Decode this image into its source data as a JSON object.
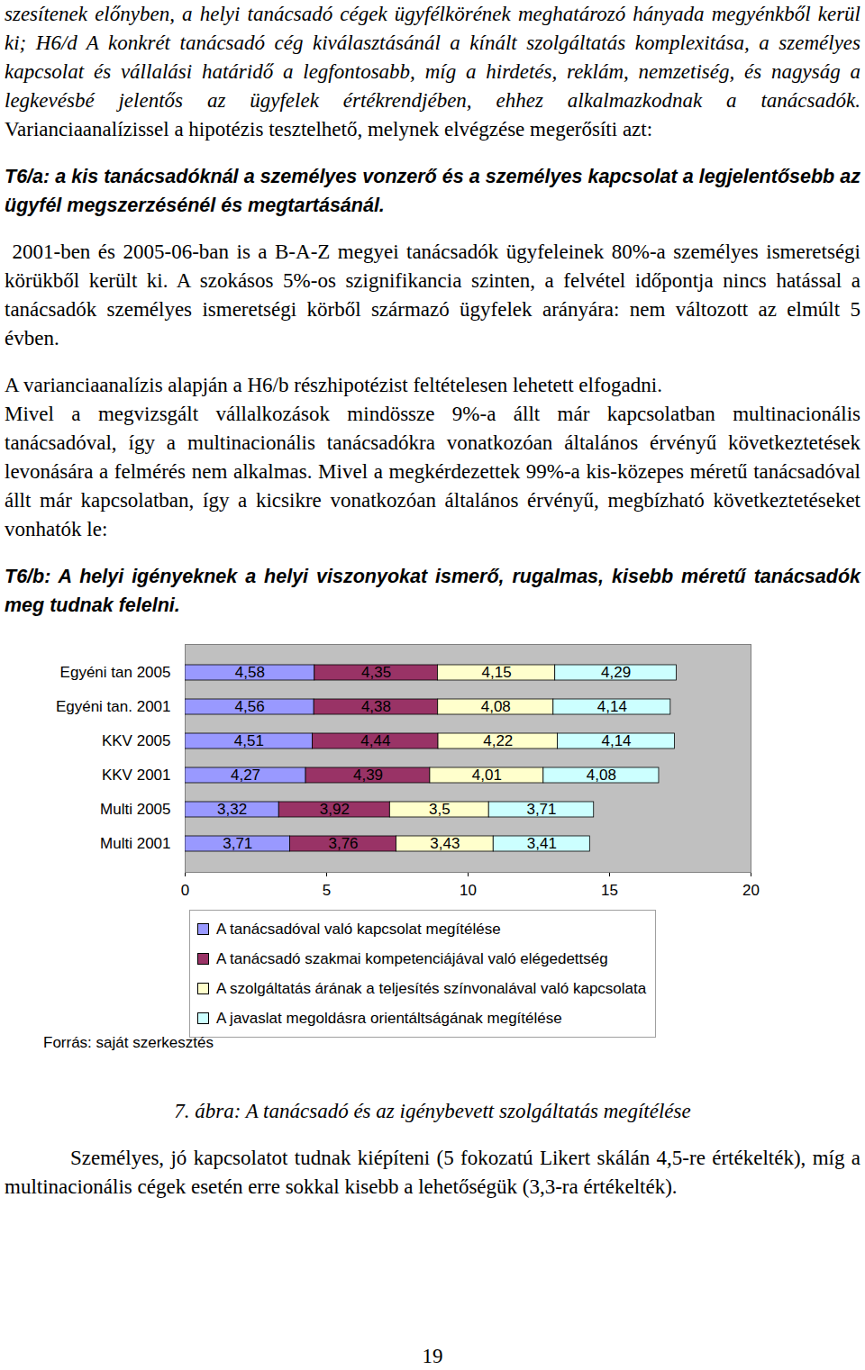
{
  "intro": {
    "italic": "szesítenek előnyben, a helyi tanácsadó cégek ügyfélkörének meghatározó hányada megyénkből kerül ki; H6/d A konkrét tanácsadó cég kiválasztásánál a kínált szolgáltatás komplexitása, a személyes kapcsolat és vállalási határidő a legfontosabb, míg a hirdetés, reklám, nemzetiség, és nagyság a legkevésbé jelentős az ügyfelek értékrendjében, ehhez alkalmazkodnak a tanácsadók.",
    "normal": "Varianciaanalízissel a hipotézis tesztelhető, melynek elvégzése megerősíti azt:"
  },
  "thesis_a": "T6/a: a kis tanácsadóknál a személyes vonzerő és a személyes kapcsolat a legjelentősebb az ügyfél megszerzésénél és megtartásánál.",
  "paragraph_2": "2001-ben és 2005-06-ban is a B-A-Z megyei tanácsadók ügyfeleinek 80%-a személyes ismeretségi körükből került ki. A szokásos 5%-os szignifikancia szinten, a felvétel időpontja nincs hatással a tanácsadók személyes ismeretségi körből származó ügyfelek arányára: nem változott az elmúlt 5 évben.",
  "paragraph_3": [
    "A varianciaanalízis alapján a H6/b részhipotézist feltételesen lehetett elfogadni.",
    "Mivel a megvizsgált vállalkozások mindössze 9%-a állt már kapcsolatban multinacionális tanácsadóval, így a multinacionális tanácsadókra vonatkozóan általános érvényű következtetések levonására a felmérés nem alkalmas. Mivel a megkérdezettek 99%-a kis-közepes méretű tanácsadóval állt már kapcsolatban, így a kicsikre vonatkozóan általános érvényű, megbízható következtetéseket vonhatók le:"
  ],
  "thesis_b": "T6/b: A helyi igényeknek a helyi viszonyokat ismerő, rugalmas, kisebb méretű tanácsadók meg tudnak felelni.",
  "chart_data": {
    "type": "bar",
    "orientation": "horizontal",
    "stacked": true,
    "data_labels": true,
    "grid": false,
    "legend": "bottom",
    "source": "Forrás: saját szerkesztés",
    "categories": [
      "Egyéni tan 2005",
      "Egyéni tan. 2001",
      "KKV 2005",
      "KKV 2001",
      "Multi 2005",
      "Multi 2001"
    ],
    "series": [
      {
        "name": "A tanácsadóval való kapcsolat megítélése",
        "color": "#9999ff",
        "values": [
          4.58,
          4.56,
          4.51,
          4.27,
          3.32,
          3.71
        ],
        "value_labels": [
          "4,58",
          "4,56",
          "4,51",
          "4,27",
          "3,32",
          "3,71"
        ]
      },
      {
        "name": "A tanácsadó szakmai kompetenciájával való elégedettség",
        "color": "#993366",
        "values": [
          4.35,
          4.38,
          4.44,
          4.39,
          3.92,
          3.76
        ],
        "value_labels": [
          "4,35",
          "4,38",
          "4,44",
          "4,39",
          "3,92",
          "3,76"
        ]
      },
      {
        "name": "A szolgáltatás árának a teljesítés színvonalával való kapcsolata",
        "color": "#ffffcc",
        "values": [
          4.15,
          4.08,
          4.22,
          4.01,
          3.5,
          3.43
        ],
        "value_labels": [
          "4,15",
          "4,08",
          "4,22",
          "4,01",
          "3,5",
          "3,43"
        ]
      },
      {
        "name": "A javaslat megoldásra orientáltságának megítélése",
        "color": "#ccffff",
        "values": [
          4.29,
          4.14,
          4.14,
          4.08,
          3.71,
          3.41
        ],
        "value_labels": [
          "4,29",
          "4,14",
          "4,14",
          "4,08",
          "3,71",
          "3,41"
        ]
      }
    ],
    "xlim": [
      0,
      20
    ],
    "xticks": [
      0,
      5,
      10,
      15,
      20
    ]
  },
  "caption": "7. ábra: A tanácsadó és az igénybevett szolgáltatás megítélése",
  "paragraph_final": "Személyes, jó kapcsolatot tudnak kiépíteni (5 fokozatú Likert skálán 4,5-re értékelték), míg a multinacionális cégek esetén erre sokkal kisebb a lehetőségük (3,3-ra értékelték).",
  "page_number": 19
}
